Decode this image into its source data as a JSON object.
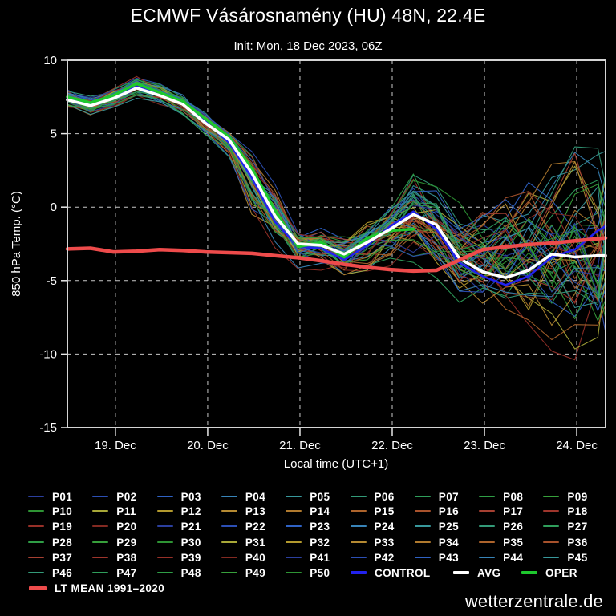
{
  "header": {
    "title": "ECMWF Vásárosnamény (HU) 48N, 22.4E",
    "subtitle": "Init: Mon, 18 Dec 2023, 06Z"
  },
  "footer": {
    "site": "wetterzentrale.de"
  },
  "chart_data": {
    "type": "line",
    "title": "ECMWF Vásárosnamény (HU) 48N, 22.4E",
    "subtitle": "Init: Mon, 18 Dec 2023, 06Z",
    "ylabel": "850 hPa Temp. (°C)",
    "xlabel": "Local time (UTC+1)",
    "ylim": [
      -15,
      10
    ],
    "yticks": [
      10,
      5,
      0,
      -5,
      -10,
      -15
    ],
    "ytick_labels": [
      "10",
      "5",
      "0",
      "-5",
      "-10",
      "-15"
    ],
    "grid": "dashed",
    "background": "#000000",
    "frame_color": "#d4d4d4",
    "total_hours": 140,
    "x_hours": [
      0,
      6,
      12,
      18,
      24,
      30,
      36,
      42,
      48,
      54,
      60,
      66,
      72,
      78,
      84,
      90,
      96,
      102,
      108,
      114,
      120,
      126,
      132,
      138,
      140
    ],
    "xticks": {
      "hours": [
        12.5,
        36.5,
        60.5,
        84.5,
        108.5,
        132.5
      ],
      "labels": [
        "19. Dec",
        "20. Dec",
        "21. Dec",
        "22. Dec",
        "23. Dec",
        "24. Dec"
      ]
    },
    "series": [
      {
        "name": "AVG",
        "color": "#ffffff",
        "width": 3.6,
        "values": [
          7.3,
          6.9,
          7.4,
          8.1,
          7.6,
          7.0,
          5.7,
          4.6,
          2.3,
          -0.6,
          -2.5,
          -2.6,
          -3.2,
          -2.4,
          -1.5,
          -0.5,
          -1.2,
          -3.5,
          -4.4,
          -4.8,
          -4.3,
          -3.2,
          -3.4,
          -3.3,
          -3.3
        ]
      },
      {
        "name": "CONTROL",
        "color": "#2222ee",
        "width": 2.6,
        "values": [
          7.4,
          7.0,
          7.5,
          8.2,
          7.7,
          7.1,
          5.8,
          4.4,
          2.0,
          -1.0,
          -2.7,
          -2.8,
          -3.6,
          -2.6,
          -1.3,
          -0.3,
          -1.5,
          -3.8,
          -4.7,
          -5.3,
          -4.7,
          -3.4,
          -2.9,
          -1.6,
          -1.3
        ]
      },
      {
        "name": "OPER",
        "color": "#1ec82e",
        "width": 3.6,
        "end_hour": 90,
        "values": [
          7.5,
          7.1,
          7.6,
          8.4,
          7.8,
          7.2,
          6.0,
          4.8,
          2.6,
          -0.2,
          -2.7,
          -2.4,
          -3.4,
          -2.1,
          -1.6,
          -1.5
        ]
      },
      {
        "name": "LT MEAN 1991–2020",
        "color": "#ee4b4b",
        "width": 4.5,
        "values": [
          -2.85,
          -2.8,
          -3.05,
          -3.0,
          -2.9,
          -2.95,
          -3.05,
          -3.1,
          -3.15,
          -3.3,
          -3.45,
          -3.65,
          -3.9,
          -4.1,
          -4.25,
          -4.35,
          -4.3,
          -3.6,
          -2.9,
          -2.7,
          -2.55,
          -2.45,
          -2.3,
          -2.15,
          -2.1
        ]
      }
    ],
    "ensemble": {
      "count": 50,
      "envelope_top": [
        8.2,
        7.7,
        8.2,
        8.9,
        8.4,
        7.9,
        6.6,
        5.6,
        4.2,
        2.0,
        -0.8,
        -0.8,
        -1.5,
        -0.5,
        0.7,
        3.0,
        1.8,
        0.3,
        0.9,
        1.5,
        2.5,
        3.4,
        4.6,
        4.0,
        3.8
      ],
      "envelope_bottom": [
        6.6,
        6.1,
        6.7,
        7.4,
        6.9,
        6.1,
        4.8,
        3.4,
        -0.5,
        -2.8,
        -4.2,
        -4.3,
        -5.0,
        -4.6,
        -4.0,
        -4.2,
        -5.2,
        -6.6,
        -7.5,
        -8.1,
        -9.0,
        -9.8,
        -10.4,
        -10.6,
        -10.5
      ],
      "palette": [
        "#2b3f9e",
        "#2c4fb5",
        "#2f62c4",
        "#3884b8",
        "#38989b",
        "#339a78",
        "#2f9e5b",
        "#2f9e46",
        "#37a03b",
        "#2e9434",
        "#a8a838",
        "#b39a2e",
        "#b58a32",
        "#b07a2e",
        "#ad642c",
        "#a8522c",
        "#a64032",
        "#9e352c",
        "#973028",
        "#832a22"
      ]
    }
  },
  "legend": {
    "member_labels": [
      "P01",
      "P02",
      "P03",
      "P04",
      "P05",
      "P06",
      "P07",
      "P08",
      "P09",
      "P10",
      "P11",
      "P12",
      "P13",
      "P14",
      "P15",
      "P16",
      "P17",
      "P18",
      "P19",
      "P20",
      "P21",
      "P22",
      "P23",
      "P24",
      "P25",
      "P26",
      "P27",
      "P28",
      "P29",
      "P30",
      "P31",
      "P32",
      "P33",
      "P34",
      "P35",
      "P36",
      "P37",
      "P38",
      "P39",
      "P40",
      "P41",
      "P42",
      "P43",
      "P44",
      "P45",
      "P46",
      "P47",
      "P48",
      "P49",
      "P50"
    ],
    "special": [
      {
        "label": "CONTROL",
        "color": "#2222ee"
      },
      {
        "label": "AVG",
        "color": "#ffffff"
      },
      {
        "label": "OPER",
        "color": "#1ec82e"
      }
    ],
    "ltmean_label": "LT MEAN 1991–2020",
    "ltmean_color": "#ee4b4b"
  }
}
